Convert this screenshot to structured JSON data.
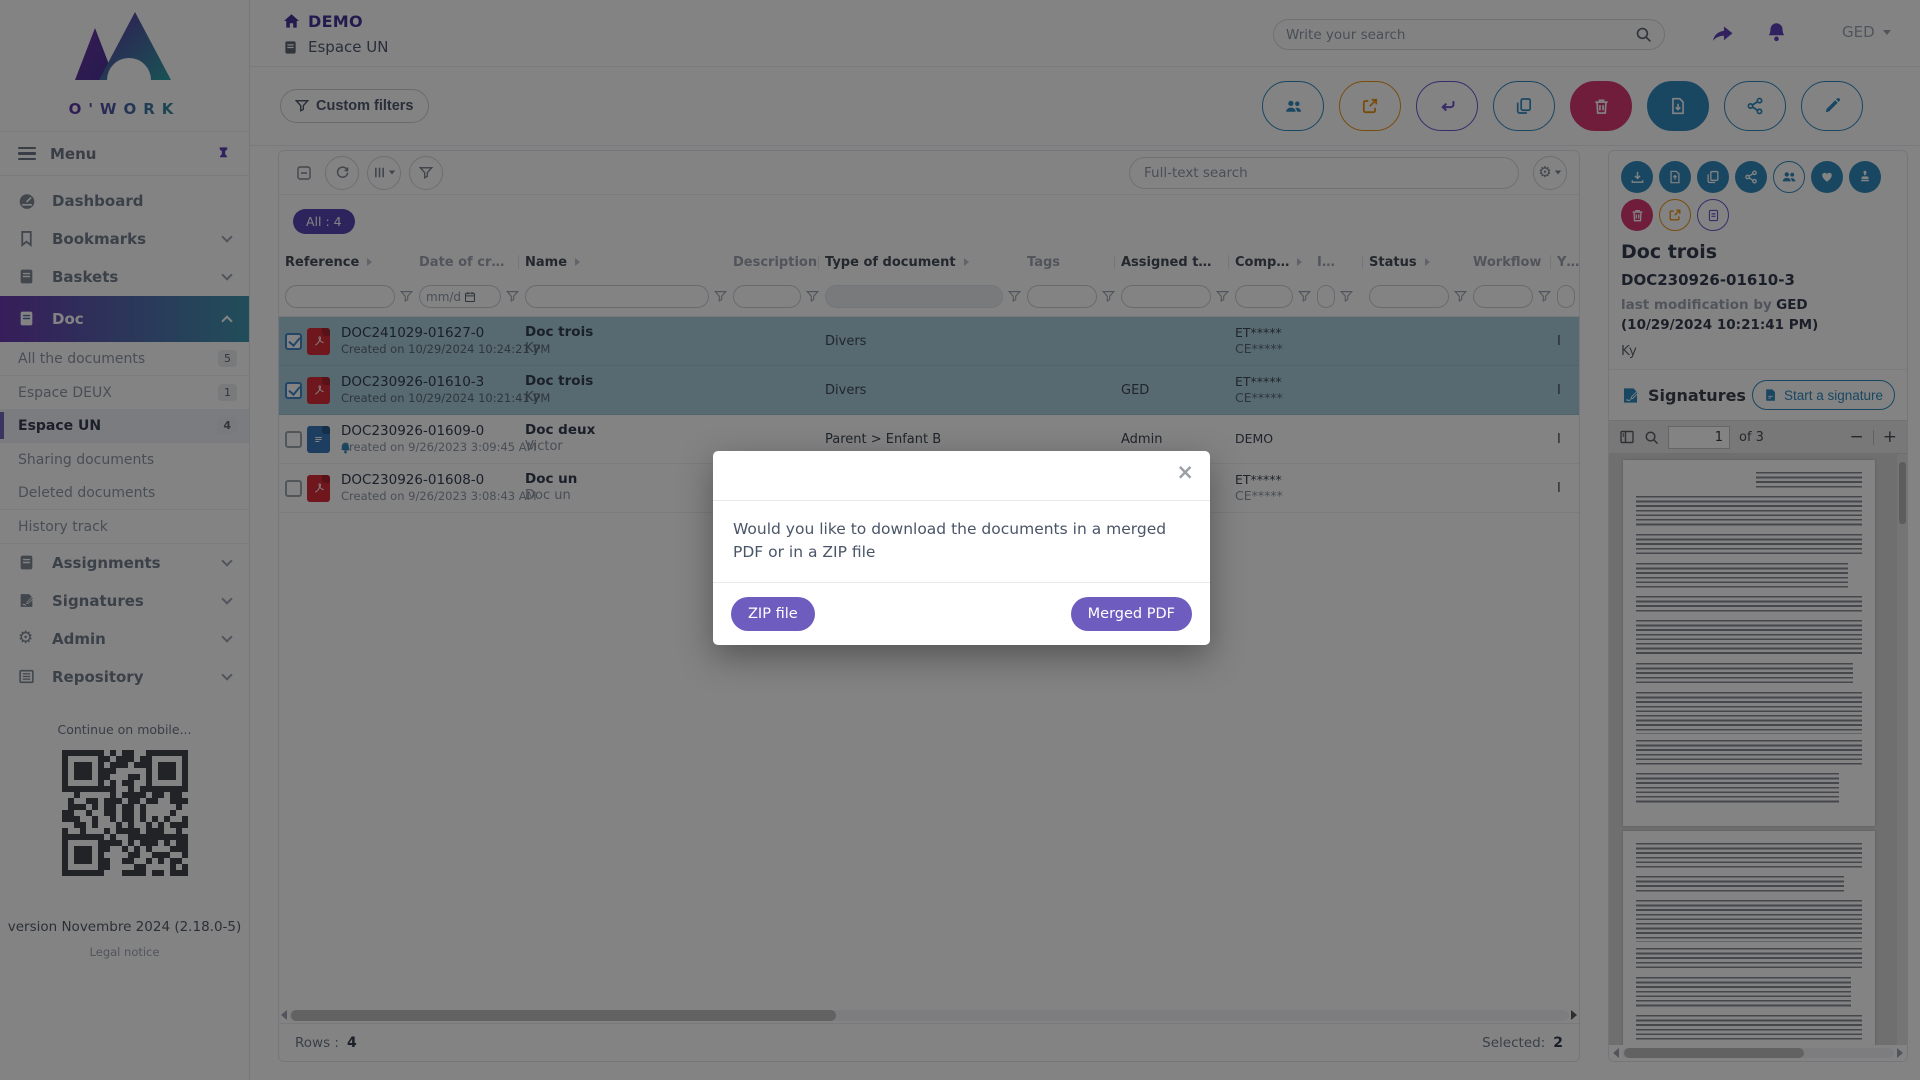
{
  "colors": {
    "accent_purple": "#5b3bb5",
    "accent_blue": "#2b87b8",
    "danger_red": "#d6336c",
    "warning_orange": "#e8910c",
    "modal_button_purple": "#6e5cbe",
    "selected_row_teal": "#a9cdd9",
    "doc_gradient_start": "#6634aa",
    "doc_gradient_end": "#3a94aa"
  },
  "glyphs": {
    "close": "×",
    "zoom_out": "−",
    "zoom_in": "+",
    "gear": "⚙"
  },
  "brand": {
    "name": "O'WORK"
  },
  "topbar": {
    "breadcrumb_root": "DEMO",
    "breadcrumb_page": "Espace UN",
    "search_placeholder": "Write your search",
    "profile": "GED"
  },
  "sidebar": {
    "menu_label": "Menu",
    "items_top": [
      {
        "label": "Dashboard"
      },
      {
        "label": "Bookmarks"
      },
      {
        "label": "Baskets"
      }
    ],
    "doc_label": "Doc",
    "doc_children": [
      {
        "label": "All the documents",
        "badge": "5"
      },
      {
        "label": "Espace DEUX",
        "badge": "1"
      },
      {
        "label": "Espace UN",
        "badge": "4"
      },
      {
        "label": "Sharing documents",
        "badge": ""
      },
      {
        "label": "Deleted documents",
        "badge": ""
      },
      {
        "label": "History track",
        "badge": ""
      }
    ],
    "items_bottom": [
      {
        "label": "Assignments"
      },
      {
        "label": "Signatures"
      },
      {
        "label": "Admin"
      },
      {
        "label": "Repository"
      }
    ],
    "mobile_hint": "Continue on mobile...",
    "version": "version Novembre 2024 (2.18.0-5)",
    "legal_notice": "Legal notice"
  },
  "actionbar": {
    "custom_filters_label": "Custom filters"
  },
  "list": {
    "fulltext_placeholder": "Full-text search",
    "count_chip": "All : 4",
    "date_filter_placeholder": "mm/d",
    "columns": [
      {
        "label": "Reference"
      },
      {
        "label": "Date of cr…"
      },
      {
        "label": "Name"
      },
      {
        "label": "Description"
      },
      {
        "label": "Type of document"
      },
      {
        "label": "Tags"
      },
      {
        "label": "Assigned t…"
      },
      {
        "label": "Comp…"
      },
      {
        "label": "I…"
      },
      {
        "label": "Status"
      },
      {
        "label": "Workflow"
      },
      {
        "label": "Y…"
      }
    ],
    "rows": [
      {
        "reference": "DOC241029-01627-0",
        "created": "Created on 10/29/2024 10:24:21 PM",
        "name": "Doc trois",
        "subname": "Ky",
        "type": "Divers",
        "assigned": "",
        "org_line1": "ET*****",
        "org_line2": "CE*****",
        "edge": "I"
      },
      {
        "reference": "DOC230926-01610-3",
        "created": "Created on 10/29/2024 10:21:41 PM",
        "name": "Doc trois",
        "subname": "Ky",
        "type": "Divers",
        "assigned": "GED",
        "org_line1": "ET*****",
        "org_line2": "CE*****",
        "edge": "I"
      },
      {
        "reference": "DOC230926-01609-0",
        "created": "Created on 9/26/2023 3:09:45 AM",
        "name": "Doc deux",
        "subname": "Victor",
        "type": "Parent > Enfant B",
        "assigned": "Admin",
        "org_line1": "DEMO",
        "org_line2": "",
        "edge": "I"
      },
      {
        "reference": "DOC230926-01608-0",
        "created": "Created on 9/26/2023 3:08:43 AM",
        "name": "Doc un",
        "subname": "Doc un",
        "type": "",
        "assigned": "",
        "org_line1": "ET*****",
        "org_line2": "CE*****",
        "edge": "I"
      }
    ],
    "footer": {
      "rows_label": "Rows :",
      "rows_value": "4",
      "selected_label": "Selected:",
      "selected_value": "2"
    }
  },
  "detail": {
    "title": "Doc trois",
    "reference": "DOC230926-01610-3",
    "modified_prefix": "last modification by",
    "modified_value": "GED (10/29/2024 10:21:41 PM)",
    "owner": "Ky",
    "signatures_label": "Signatures",
    "start_signature_label": "Start a signature",
    "page_value": "1",
    "page_of": "of 3"
  },
  "modal": {
    "message": "Would you like to download the documents in a merged PDF or in a ZIP file",
    "zip_label": "ZIP file",
    "merged_label": "Merged PDF"
  }
}
